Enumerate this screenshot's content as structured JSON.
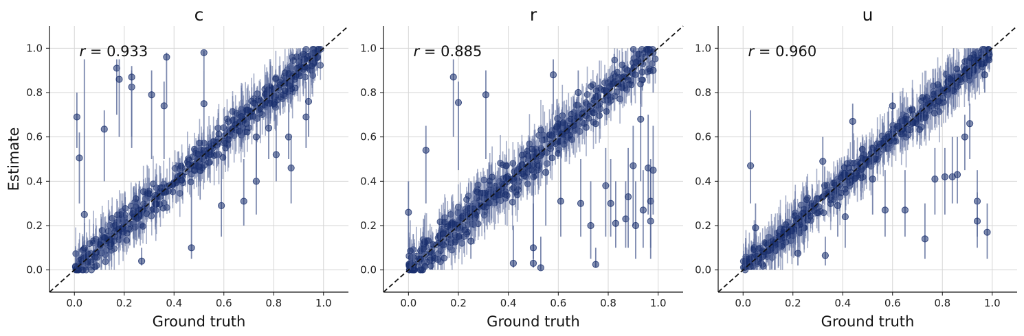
{
  "colors": {
    "point": "#1a2f6e",
    "errorbar": "#5a6a9a",
    "identity_line": "#111111",
    "grid": "#d6d6d6",
    "axis": "#111111"
  },
  "chart_data": [
    {
      "type": "scatter",
      "title": "c",
      "xlabel": "Ground truth",
      "ylabel": "Estimate",
      "xlim": [
        -0.1,
        1.1
      ],
      "ylim": [
        -0.1,
        1.1
      ],
      "xticks": [
        0.0,
        0.2,
        0.4,
        0.6,
        0.8,
        1.0
      ],
      "yticks": [
        0.0,
        0.2,
        0.4,
        0.6,
        0.8,
        1.0
      ],
      "tick_labels": [
        "0.0",
        "0.2",
        "0.4",
        "0.6",
        "0.8",
        "1.0"
      ],
      "grid": true,
      "identity_line": true,
      "annotation": {
        "symbol": "r",
        "text": " = 0.933",
        "placement": "top-left"
      },
      "points": [
        {
          "x": 0.01,
          "y": 0.69,
          "lo": 0.55,
          "hi": 0.8
        },
        {
          "x": 0.02,
          "y": 0.505,
          "lo": 0.3,
          "hi": 0.62
        },
        {
          "x": 0.04,
          "y": 0.25,
          "lo": 0.1,
          "hi": 0.95
        },
        {
          "x": 0.12,
          "y": 0.635,
          "lo": 0.4,
          "hi": 0.72
        },
        {
          "x": 0.17,
          "y": 0.91,
          "lo": 0.7,
          "hi": 0.95
        },
        {
          "x": 0.18,
          "y": 0.86,
          "lo": 0.6,
          "hi": 0.95
        },
        {
          "x": 0.23,
          "y": 0.825,
          "lo": 0.55,
          "hi": 0.9
        },
        {
          "x": 0.23,
          "y": 0.87,
          "lo": 0.6,
          "hi": 0.92
        },
        {
          "x": 0.27,
          "y": 0.04,
          "lo": 0.02,
          "hi": 0.1
        },
        {
          "x": 0.31,
          "y": 0.79,
          "lo": 0.5,
          "hi": 0.9
        },
        {
          "x": 0.36,
          "y": 0.74,
          "lo": 0.5,
          "hi": 0.85
        },
        {
          "x": 0.37,
          "y": 0.96,
          "lo": 0.75,
          "hi": 0.98
        },
        {
          "x": 0.52,
          "y": 0.98,
          "lo": 0.9,
          "hi": 0.99
        },
        {
          "x": 0.47,
          "y": 0.1,
          "lo": 0.05,
          "hi": 0.4
        },
        {
          "x": 0.52,
          "y": 0.75,
          "lo": 0.55,
          "hi": 0.9
        },
        {
          "x": 0.59,
          "y": 0.29,
          "lo": 0.15,
          "hi": 0.5
        },
        {
          "x": 0.68,
          "y": 0.31,
          "lo": 0.2,
          "hi": 0.5
        },
        {
          "x": 0.73,
          "y": 0.4,
          "lo": 0.25,
          "hi": 0.6
        },
        {
          "x": 0.73,
          "y": 0.6,
          "lo": 0.4,
          "hi": 0.75
        },
        {
          "x": 0.78,
          "y": 0.64,
          "lo": 0.5,
          "hi": 0.75
        },
        {
          "x": 0.81,
          "y": 0.52,
          "lo": 0.4,
          "hi": 0.7
        },
        {
          "x": 0.86,
          "y": 0.6,
          "lo": 0.5,
          "hi": 0.75
        },
        {
          "x": 0.87,
          "y": 0.46,
          "lo": 0.3,
          "hi": 0.6
        },
        {
          "x": 0.93,
          "y": 0.69,
          "lo": 0.55,
          "hi": 0.85
        },
        {
          "x": 0.94,
          "y": 0.76,
          "lo": 0.6,
          "hi": 0.9
        }
      ]
    },
    {
      "type": "scatter",
      "title": "r",
      "xlabel": "Ground truth",
      "ylabel": "",
      "xlim": [
        -0.1,
        1.1
      ],
      "ylim": [
        -0.1,
        1.1
      ],
      "xticks": [
        0.0,
        0.2,
        0.4,
        0.6,
        0.8,
        1.0
      ],
      "yticks": [
        0.0,
        0.2,
        0.4,
        0.6,
        0.8,
        1.0
      ],
      "tick_labels": [
        "0.0",
        "0.2",
        "0.4",
        "0.6",
        "0.8",
        "1.0"
      ],
      "grid": true,
      "identity_line": true,
      "annotation": {
        "symbol": "r",
        "text": " = 0.885",
        "placement": "top-left"
      },
      "points": [
        {
          "x": 0.0,
          "y": 0.26,
          "lo": 0.1,
          "hi": 0.4
        },
        {
          "x": 0.07,
          "y": 0.54,
          "lo": 0.3,
          "hi": 0.65
        },
        {
          "x": 0.18,
          "y": 0.87,
          "lo": 0.6,
          "hi": 0.95
        },
        {
          "x": 0.2,
          "y": 0.755,
          "lo": 0.45,
          "hi": 0.85
        },
        {
          "x": 0.25,
          "y": 0.13,
          "lo": 0.05,
          "hi": 0.4
        },
        {
          "x": 0.31,
          "y": 0.79,
          "lo": 0.5,
          "hi": 0.9
        },
        {
          "x": 0.42,
          "y": 0.03,
          "lo": 0.01,
          "hi": 0.2
        },
        {
          "x": 0.5,
          "y": 0.03,
          "lo": 0.01,
          "hi": 0.3
        },
        {
          "x": 0.53,
          "y": 0.01,
          "lo": 0.0,
          "hi": 0.15
        },
        {
          "x": 0.5,
          "y": 0.1,
          "lo": 0.05,
          "hi": 0.4
        },
        {
          "x": 0.55,
          "y": 0.44,
          "lo": 0.2,
          "hi": 0.65
        },
        {
          "x": 0.58,
          "y": 0.88,
          "lo": 0.7,
          "hi": 0.95
        },
        {
          "x": 0.61,
          "y": 0.31,
          "lo": 0.15,
          "hi": 0.55
        },
        {
          "x": 0.68,
          "y": 0.8,
          "lo": 0.6,
          "hi": 0.9
        },
        {
          "x": 0.69,
          "y": 0.3,
          "lo": 0.15,
          "hi": 0.5
        },
        {
          "x": 0.73,
          "y": 0.2,
          "lo": 0.05,
          "hi": 0.4
        },
        {
          "x": 0.75,
          "y": 0.025,
          "lo": 0.01,
          "hi": 0.1
        },
        {
          "x": 0.79,
          "y": 0.38,
          "lo": 0.15,
          "hi": 0.55
        },
        {
          "x": 0.81,
          "y": 0.3,
          "lo": 0.15,
          "hi": 0.5
        },
        {
          "x": 0.83,
          "y": 0.21,
          "lo": 0.1,
          "hi": 0.4
        },
        {
          "x": 0.87,
          "y": 0.23,
          "lo": 0.1,
          "hi": 0.4
        },
        {
          "x": 0.88,
          "y": 0.33,
          "lo": 0.1,
          "hi": 0.55
        },
        {
          "x": 0.9,
          "y": 0.47,
          "lo": 0.2,
          "hi": 0.65
        },
        {
          "x": 0.91,
          "y": 0.2,
          "lo": 0.05,
          "hi": 0.4
        },
        {
          "x": 0.93,
          "y": 0.68,
          "lo": 0.4,
          "hi": 0.85
        },
        {
          "x": 0.94,
          "y": 0.27,
          "lo": 0.1,
          "hi": 0.45
        },
        {
          "x": 0.96,
          "y": 0.46,
          "lo": 0.25,
          "hi": 0.7
        },
        {
          "x": 0.97,
          "y": 0.22,
          "lo": 0.05,
          "hi": 0.45
        },
        {
          "x": 0.97,
          "y": 0.31,
          "lo": 0.1,
          "hi": 0.5
        },
        {
          "x": 0.98,
          "y": 0.45,
          "lo": 0.25,
          "hi": 0.65
        },
        {
          "x": 0.98,
          "y": 0.9,
          "lo": 0.8,
          "hi": 0.97
        }
      ]
    },
    {
      "type": "scatter",
      "title": "u",
      "xlabel": "Ground truth",
      "ylabel": "",
      "xlim": [
        -0.1,
        1.1
      ],
      "ylim": [
        -0.1,
        1.1
      ],
      "xticks": [
        0.0,
        0.2,
        0.4,
        0.6,
        0.8,
        1.0
      ],
      "yticks": [
        0.0,
        0.2,
        0.4,
        0.6,
        0.8,
        1.0
      ],
      "tick_labels": [
        "0.0",
        "0.2",
        "0.4",
        "0.6",
        "0.8",
        "1.0"
      ],
      "grid": true,
      "identity_line": true,
      "annotation": {
        "symbol": "r",
        "text": " = 0.960",
        "placement": "top-left"
      },
      "points": [
        {
          "x": 0.03,
          "y": 0.47,
          "lo": 0.3,
          "hi": 0.72
        },
        {
          "x": 0.05,
          "y": 0.19,
          "lo": 0.1,
          "hi": 0.3
        },
        {
          "x": 0.22,
          "y": 0.075,
          "lo": 0.02,
          "hi": 0.2
        },
        {
          "x": 0.32,
          "y": 0.49,
          "lo": 0.3,
          "hi": 0.6
        },
        {
          "x": 0.33,
          "y": 0.065,
          "lo": 0.02,
          "hi": 0.15
        },
        {
          "x": 0.38,
          "y": 0.29,
          "lo": 0.15,
          "hi": 0.4
        },
        {
          "x": 0.41,
          "y": 0.24,
          "lo": 0.1,
          "hi": 0.35
        },
        {
          "x": 0.44,
          "y": 0.67,
          "lo": 0.5,
          "hi": 0.75
        },
        {
          "x": 0.52,
          "y": 0.41,
          "lo": 0.25,
          "hi": 0.55
        },
        {
          "x": 0.57,
          "y": 0.27,
          "lo": 0.15,
          "hi": 0.45
        },
        {
          "x": 0.6,
          "y": 0.74,
          "lo": 0.6,
          "hi": 0.8
        },
        {
          "x": 0.65,
          "y": 0.27,
          "lo": 0.15,
          "hi": 0.45
        },
        {
          "x": 0.73,
          "y": 0.14,
          "lo": 0.05,
          "hi": 0.3
        },
        {
          "x": 0.77,
          "y": 0.41,
          "lo": 0.25,
          "hi": 0.55
        },
        {
          "x": 0.81,
          "y": 0.42,
          "lo": 0.25,
          "hi": 0.55
        },
        {
          "x": 0.84,
          "y": 0.42,
          "lo": 0.3,
          "hi": 0.6
        },
        {
          "x": 0.86,
          "y": 0.43,
          "lo": 0.3,
          "hi": 0.6
        },
        {
          "x": 0.89,
          "y": 0.6,
          "lo": 0.45,
          "hi": 0.7
        },
        {
          "x": 0.91,
          "y": 0.66,
          "lo": 0.5,
          "hi": 0.75
        },
        {
          "x": 0.94,
          "y": 0.31,
          "lo": 0.15,
          "hi": 0.45
        },
        {
          "x": 0.94,
          "y": 0.22,
          "lo": 0.1,
          "hi": 0.35
        },
        {
          "x": 0.98,
          "y": 0.17,
          "lo": 0.05,
          "hi": 0.3
        },
        {
          "x": 0.97,
          "y": 0.88,
          "lo": 0.8,
          "hi": 0.92
        }
      ]
    }
  ]
}
